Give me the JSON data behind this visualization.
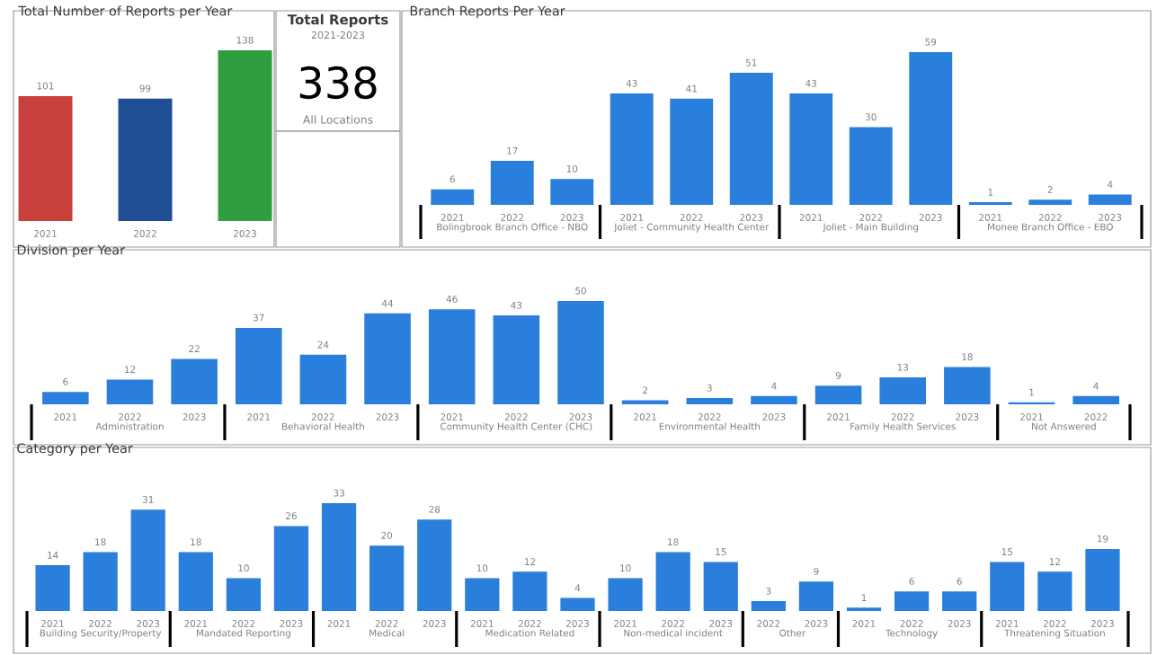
{
  "chart_data": [
    {
      "type": "bar",
      "title": "Total Number of Reports per Year",
      "categories": [
        "2021",
        "2022",
        "2023"
      ],
      "values": [
        101,
        99,
        138
      ],
      "colors": [
        "#c8403c",
        "#1f4e94",
        "#2e9e3e"
      ],
      "data_labels": true
    },
    {
      "type": "other",
      "title": "Total Reports",
      "subtitle": "2021-2023",
      "values": [
        338
      ],
      "data_labels": true,
      "annotations": [
        "All Locations"
      ]
    },
    {
      "type": "bar",
      "title": "Branch Reports Per Year",
      "xlabel": "Bolingbrook Branch Office - NBO",
      "categories": [
        "2021",
        "2022",
        "2023"
      ],
      "values": [
        6,
        17,
        10
      ],
      "color": "#2a7fdc",
      "data_labels": true
    },
    {
      "type": "bar",
      "xlabel": "Joliet - Community Health Center",
      "categories": [
        "2021",
        "2022",
        "2023"
      ],
      "values": [
        43,
        41,
        51
      ],
      "color": "#2a7fdc",
      "data_labels": true
    },
    {
      "type": "bar",
      "xlabel": "Joliet - Main Building",
      "categories": [
        "2021",
        "2022",
        "2023"
      ],
      "values": [
        43,
        30,
        59
      ],
      "color": "#2a7fdc",
      "data_labels": true
    },
    {
      "type": "bar",
      "xlabel": "Monee Branch Office - EBO",
      "categories": [
        "2021",
        "2022",
        "2023"
      ],
      "values": [
        1,
        2,
        4
      ],
      "color": "#2a7fdc",
      "data_labels": true
    },
    {
      "type": "bar",
      "title": "Division per Year",
      "xlabel": "Administration",
      "categories": [
        "2021",
        "2022",
        "2023"
      ],
      "values": [
        6,
        12,
        22
      ],
      "color": "#2a7fdc",
      "data_labels": true
    },
    {
      "type": "bar",
      "xlabel": "Behavioral Health",
      "categories": [
        "2021",
        "2022",
        "2023"
      ],
      "values": [
        37,
        24,
        44
      ],
      "color": "#2a7fdc",
      "data_labels": true
    },
    {
      "type": "bar",
      "xlabel": "Community Health Center (CHC)",
      "categories": [
        "2021",
        "2022",
        "2023"
      ],
      "values": [
        46,
        43,
        50
      ],
      "color": "#2a7fdc",
      "data_labels": true
    },
    {
      "type": "bar",
      "xlabel": "Environmental Health",
      "categories": [
        "2021",
        "2022",
        "2023"
      ],
      "values": [
        2,
        3,
        4
      ],
      "color": "#2a7fdc",
      "data_labels": true
    },
    {
      "type": "bar",
      "xlabel": "Family Health Services",
      "categories": [
        "2021",
        "2022",
        "2023"
      ],
      "values": [
        9,
        13,
        18
      ],
      "color": "#2a7fdc",
      "data_labels": true
    },
    {
      "type": "bar",
      "xlabel": "Not Answered",
      "categories": [
        "2021",
        "2022"
      ],
      "values": [
        1,
        4
      ],
      "color": "#2a7fdc",
      "data_labels": true
    },
    {
      "type": "bar",
      "title": "Category per Year",
      "xlabel": "Building Security/Property",
      "categories": [
        "2021",
        "2022",
        "2023"
      ],
      "values": [
        14,
        18,
        31
      ],
      "color": "#2a7fdc",
      "data_labels": true
    },
    {
      "type": "bar",
      "xlabel": "Mandated Reporting",
      "categories": [
        "2021",
        "2022",
        "2023"
      ],
      "values": [
        18,
        10,
        26
      ],
      "color": "#2a7fdc",
      "data_labels": true
    },
    {
      "type": "bar",
      "xlabel": "Medical",
      "categories": [
        "2021",
        "2022",
        "2023"
      ],
      "values": [
        33,
        20,
        28
      ],
      "color": "#2a7fdc",
      "data_labels": true
    },
    {
      "type": "bar",
      "xlabel": "Medication Related",
      "categories": [
        "2021",
        "2022",
        "2023"
      ],
      "values": [
        10,
        12,
        4
      ],
      "color": "#2a7fdc",
      "data_labels": true
    },
    {
      "type": "bar",
      "xlabel": "Non-medical incident",
      "categories": [
        "2021",
        "2022",
        "2023"
      ],
      "values": [
        10,
        18,
        15
      ],
      "color": "#2a7fdc",
      "data_labels": true
    },
    {
      "type": "bar",
      "xlabel": "Other",
      "categories": [
        "2022",
        "2023"
      ],
      "values": [
        3,
        9
      ],
      "color": "#2a7fdc",
      "data_labels": true
    },
    {
      "type": "bar",
      "xlabel": "Technology",
      "categories": [
        "2021",
        "2022",
        "2023"
      ],
      "values": [
        1,
        6,
        6
      ],
      "color": "#2a7fdc",
      "data_labels": true
    },
    {
      "type": "bar",
      "xlabel": "Threatening Situation",
      "categories": [
        "2021",
        "2022",
        "2023"
      ],
      "values": [
        15,
        12,
        19
      ],
      "color": "#2a7fdc",
      "data_labels": true
    }
  ]
}
